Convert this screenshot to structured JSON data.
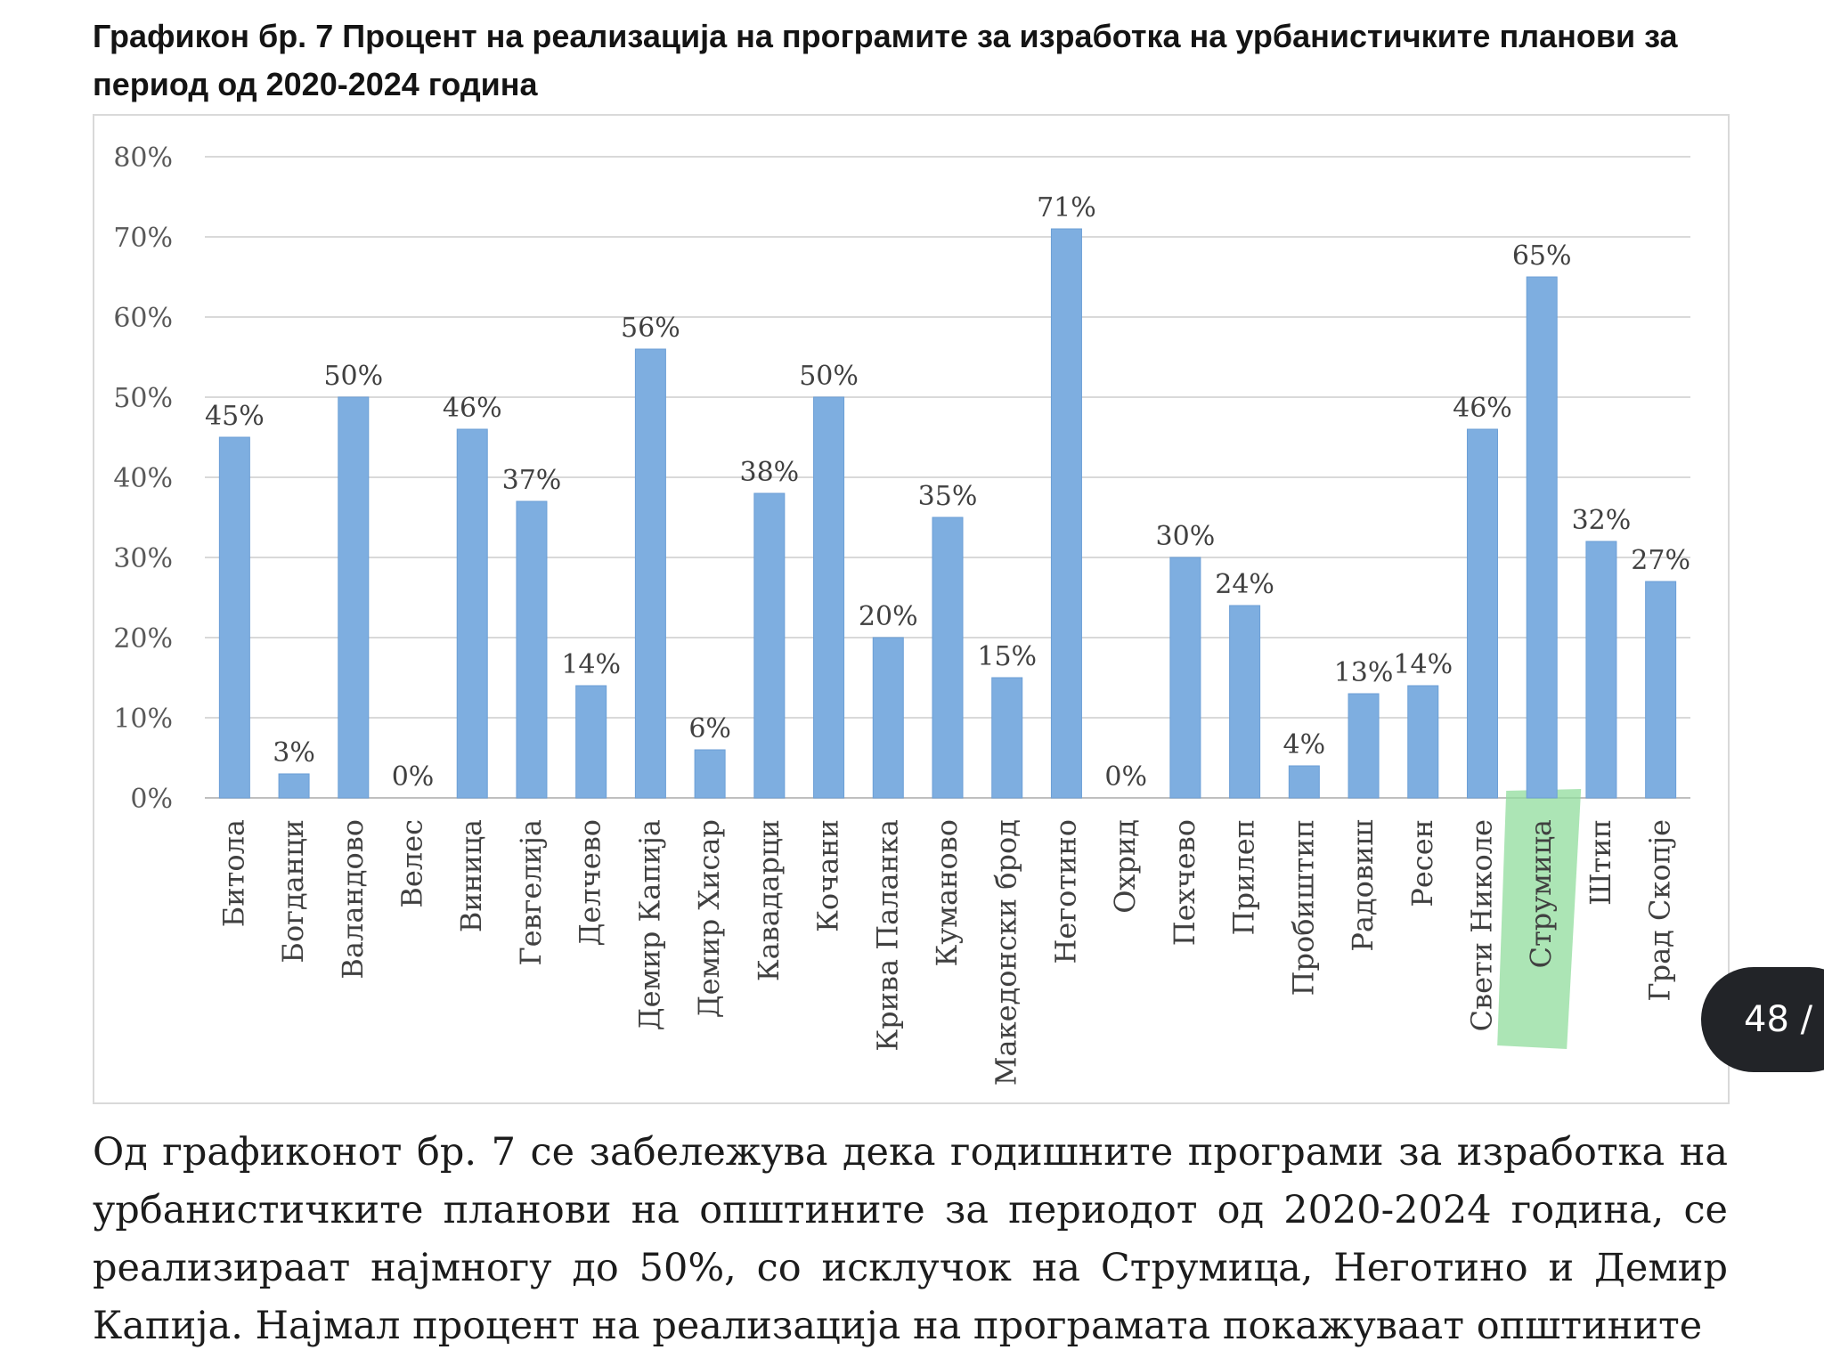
{
  "caption": "Графикон бр. 7 Процент на реализација на програмите за изработка на урбанистичките планови за период од 2020-2024 година",
  "paragraph": "Од графиконот бр. 7 се забележува дека годишните програми за изработка на урбанистичките планови на општините за периодот од 2020-2024 година, се реализираат најмногу до 50%, со исклучок на Струмица, Неготино и Демир Капија. Најмал процент на реализација на програмата покажуваат општините",
  "page_badge": "48 /",
  "chart_data": {
    "type": "bar",
    "title": "",
    "xlabel": "",
    "ylabel": "",
    "ylim": [
      0,
      80
    ],
    "yticks": [
      "0%",
      "10%",
      "20%",
      "30%",
      "40%",
      "50%",
      "60%",
      "70%",
      "80%"
    ],
    "grid": true,
    "legend": "none",
    "bar_color": "#7eaee0",
    "highlight": {
      "category": "Струмица",
      "color": "#90dc9c"
    },
    "categories": [
      "Битола",
      "Богданци",
      "Валандово",
      "Велес",
      "Виница",
      "Гевгелија",
      "Делчево",
      "Демир Капија",
      "Демир Хисар",
      "Кавадарци",
      "Кочани",
      "Крива Паланка",
      "Куманово",
      "Македонски брод",
      "Неготино",
      "Охрид",
      "Пехчево",
      "Прилеп",
      "Пробиштип",
      "Радовиш",
      "Ресен",
      "Свети Николе",
      "Струмица",
      "Штип",
      "Град Скопје"
    ],
    "values": [
      45,
      3,
      50,
      0,
      46,
      37,
      14,
      56,
      6,
      38,
      50,
      20,
      35,
      15,
      71,
      0,
      30,
      24,
      4,
      13,
      14,
      46,
      65,
      32,
      27
    ],
    "data_labels": [
      "45%",
      "3%",
      "50%",
      "0%",
      "46%",
      "37%",
      "14%",
      "56%",
      "6%",
      "38%",
      "50%",
      "20%",
      "35%",
      "15%",
      "71%",
      "0%",
      "30%",
      "24%",
      "4%",
      "13%",
      "14%",
      "46%",
      "65%",
      "32%",
      "27%"
    ]
  }
}
